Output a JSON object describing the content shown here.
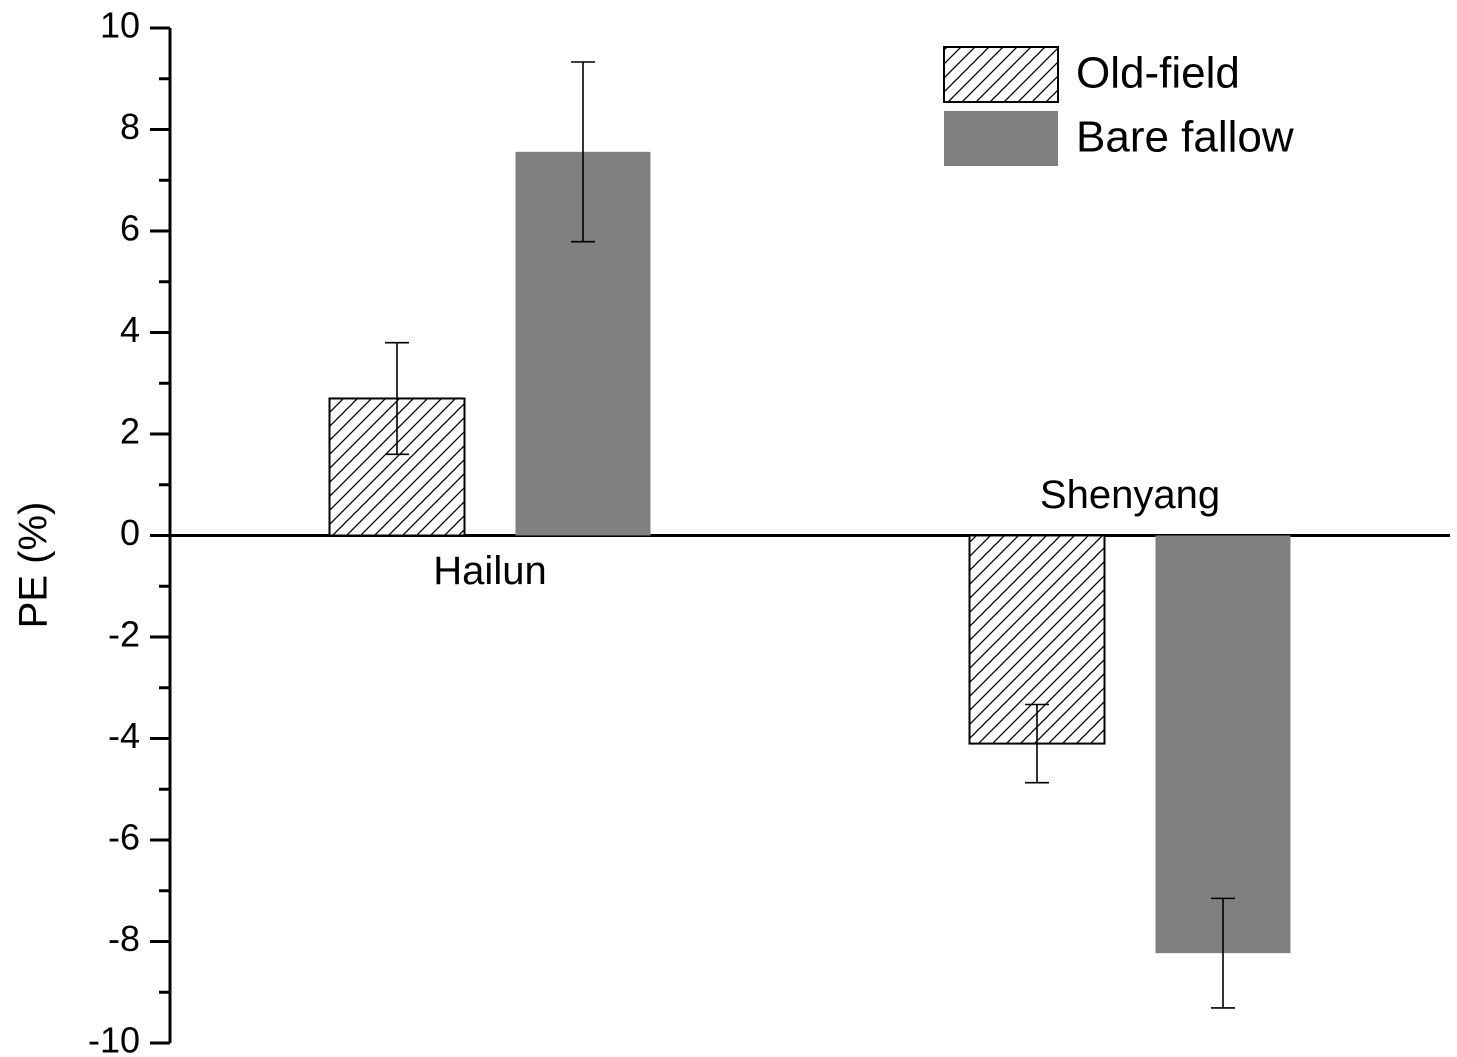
{
  "chart_data": {
    "type": "bar",
    "y_label": "PE (%)",
    "categories": [
      "Hailun",
      "Shenyang"
    ],
    "series": [
      {
        "name": "Old-field",
        "color": "#ffffff",
        "hatch": true,
        "values": [
          2.7,
          -4.1
        ],
        "errors": [
          1.1,
          0.77
        ]
      },
      {
        "name": "Bare fallow",
        "color": "#808080",
        "hatch": false,
        "values": [
          7.56,
          -8.23
        ],
        "errors": [
          1.77,
          1.08
        ]
      }
    ],
    "ylim": [
      -10,
      10
    ],
    "yticks": [
      -10,
      -8,
      -6,
      -4,
      -2,
      0,
      2,
      4,
      6,
      8,
      10
    ],
    "yminorticks": [
      -9,
      -7,
      -5,
      -3,
      -1,
      1,
      3,
      5,
      7,
      9
    ],
    "grid": false,
    "legend": "top-right"
  }
}
